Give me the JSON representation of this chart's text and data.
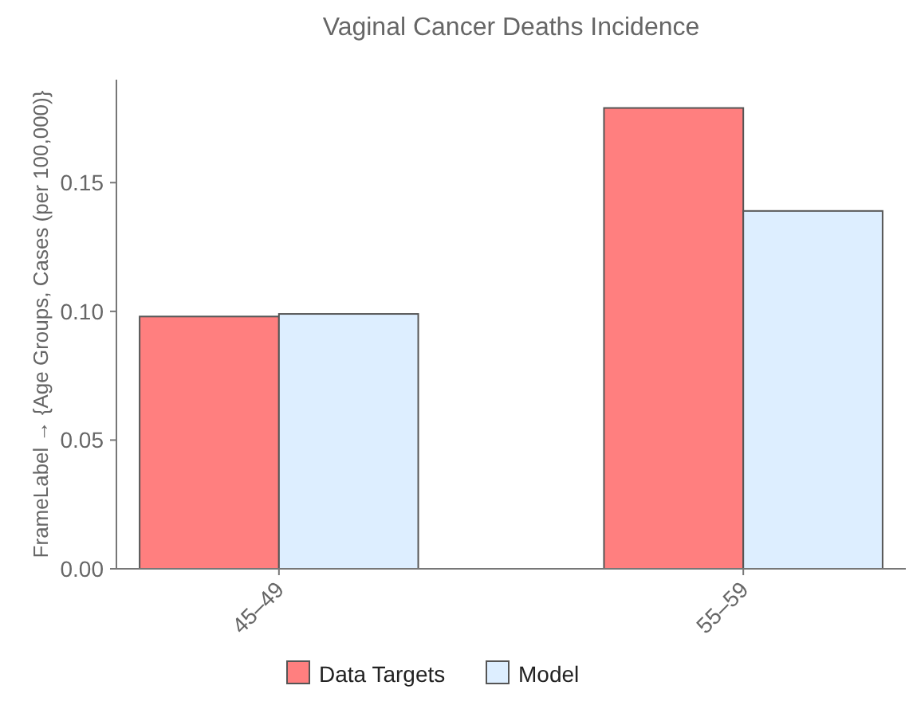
{
  "chart_data": {
    "type": "bar",
    "title": "Vaginal Cancer Deaths Incidence",
    "ylabel": "FrameLabel → {Age Groups, Cases (per 100,000)}",
    "categories": [
      "45–49",
      "55–59"
    ],
    "series": [
      {
        "name": "Data Targets",
        "color": "#ff7f7f",
        "values": [
          0.098,
          0.179
        ]
      },
      {
        "name": "Model",
        "color": "#ddeeff",
        "values": [
          0.099,
          0.139
        ]
      }
    ],
    "ylim": [
      0,
      0.19
    ],
    "yticks": [
      {
        "value": 0,
        "label": "0.00"
      },
      {
        "value": 0.05,
        "label": "0.05"
      },
      {
        "value": 0.1,
        "label": "0.10"
      },
      {
        "value": 0.15,
        "label": "0.15"
      }
    ],
    "legend": "bottom"
  }
}
